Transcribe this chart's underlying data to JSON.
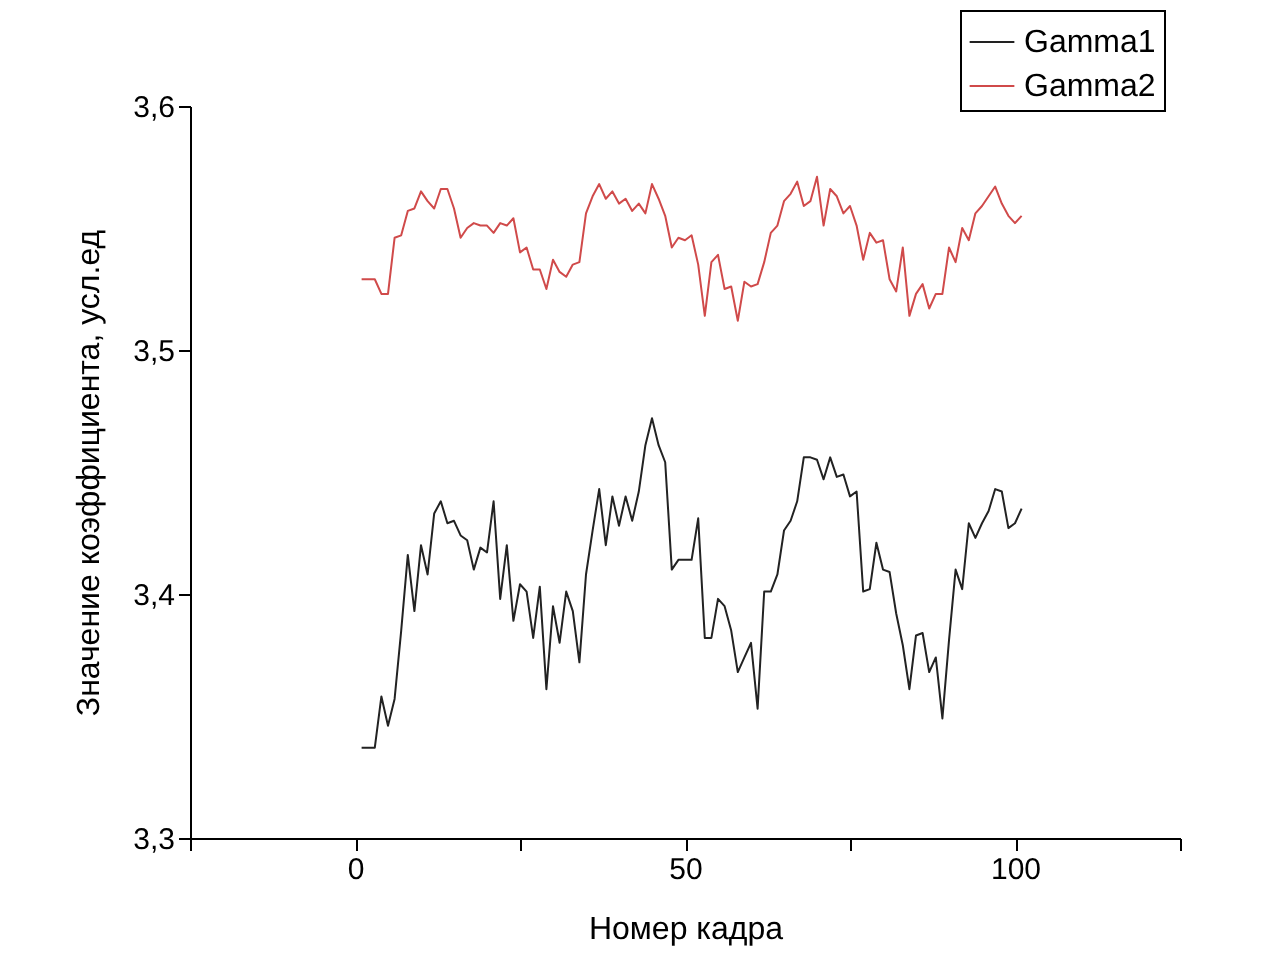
{
  "chart_data": {
    "type": "line",
    "xlabel": "Номер кадра",
    "ylabel": "Значение коэффициента, усл.ед",
    "x": [
      1,
      2,
      3,
      4,
      5,
      6,
      7,
      8,
      9,
      10,
      11,
      12,
      13,
      14,
      15,
      16,
      17,
      18,
      19,
      20,
      21,
      22,
      23,
      24,
      25,
      26,
      27,
      28,
      29,
      30,
      31,
      32,
      33,
      34,
      35,
      36,
      37,
      38,
      39,
      40,
      41,
      42,
      43,
      44,
      45,
      46,
      47,
      48,
      49,
      50,
      51,
      52,
      53,
      54,
      55,
      56,
      57,
      58,
      59,
      60,
      61,
      62,
      63,
      64,
      65,
      66,
      67,
      68,
      69,
      70,
      71,
      72,
      73,
      74,
      75,
      76,
      77,
      78,
      79,
      80,
      81,
      82,
      83,
      84,
      85,
      86,
      87,
      88,
      89,
      90,
      91,
      92,
      93,
      94,
      95,
      96,
      97,
      98,
      99,
      100,
      101
    ],
    "series": [
      {
        "name": "Gamma1",
        "color": "#222222",
        "values": [
          3.337,
          3.337,
          3.337,
          3.358,
          3.346,
          3.357,
          3.385,
          3.416,
          3.393,
          3.42,
          3.408,
          3.433,
          3.438,
          3.429,
          3.43,
          3.424,
          3.422,
          3.41,
          3.419,
          3.417,
          3.438,
          3.398,
          3.42,
          3.389,
          3.404,
          3.401,
          3.382,
          3.403,
          3.361,
          3.395,
          3.38,
          3.401,
          3.393,
          3.372,
          3.408,
          3.426,
          3.443,
          3.42,
          3.44,
          3.428,
          3.44,
          3.43,
          3.442,
          3.461,
          3.472,
          3.461,
          3.454,
          3.41,
          3.414,
          3.414,
          3.414,
          3.431,
          3.382,
          3.382,
          3.398,
          3.395,
          3.385,
          3.368,
          3.374,
          3.38,
          3.353,
          3.401,
          3.401,
          3.408,
          3.426,
          3.43,
          3.438,
          3.456,
          3.456,
          3.455,
          3.447,
          3.456,
          3.448,
          3.449,
          3.44,
          3.442,
          3.401,
          3.402,
          3.421,
          3.41,
          3.409,
          3.392,
          3.379,
          3.361,
          3.383,
          3.384,
          3.368,
          3.374,
          3.349,
          3.381,
          3.41,
          3.402,
          3.429,
          3.423,
          3.429,
          3.434,
          3.443,
          3.442,
          3.427,
          3.429,
          3.435
        ]
      },
      {
        "name": "Gamma2",
        "color": "#d04a4a",
        "values": [
          3.529,
          3.529,
          3.529,
          3.523,
          3.523,
          3.546,
          3.547,
          3.557,
          3.558,
          3.565,
          3.561,
          3.558,
          3.566,
          3.566,
          3.558,
          3.546,
          3.55,
          3.552,
          3.551,
          3.551,
          3.548,
          3.552,
          3.551,
          3.554,
          3.54,
          3.542,
          3.533,
          3.533,
          3.525,
          3.537,
          3.532,
          3.53,
          3.535,
          3.536,
          3.556,
          3.563,
          3.568,
          3.562,
          3.565,
          3.56,
          3.562,
          3.557,
          3.56,
          3.556,
          3.568,
          3.562,
          3.555,
          3.542,
          3.546,
          3.545,
          3.547,
          3.535,
          3.514,
          3.536,
          3.539,
          3.525,
          3.526,
          3.512,
          3.528,
          3.526,
          3.527,
          3.536,
          3.548,
          3.551,
          3.561,
          3.564,
          3.569,
          3.559,
          3.561,
          3.571,
          3.551,
          3.566,
          3.563,
          3.556,
          3.559,
          3.551,
          3.537,
          3.548,
          3.544,
          3.545,
          3.529,
          3.524,
          3.542,
          3.514,
          3.523,
          3.527,
          3.517,
          3.523,
          3.523,
          3.542,
          3.536,
          3.55,
          3.545,
          3.556,
          3.559,
          3.563,
          3.567,
          3.56,
          3.555,
          3.552,
          3.555
        ]
      }
    ],
    "xlim": [
      -25,
      125
    ],
    "xticks": [
      {
        "value": -25,
        "label": null
      },
      0,
      {
        "value": 25,
        "label": null
      },
      50,
      {
        "value": 75,
        "label": null
      },
      100,
      {
        "value": 125,
        "label": null
      }
    ],
    "ylim": [
      3.3,
      3.6
    ],
    "yticks": [
      {
        "value": 3.3,
        "label": "3,3"
      },
      {
        "value": 3.4,
        "label": "3,4"
      },
      {
        "value": 3.5,
        "label": "3,5"
      },
      {
        "value": 3.6,
        "label": "3,6"
      }
    ],
    "legend": "top right"
  }
}
